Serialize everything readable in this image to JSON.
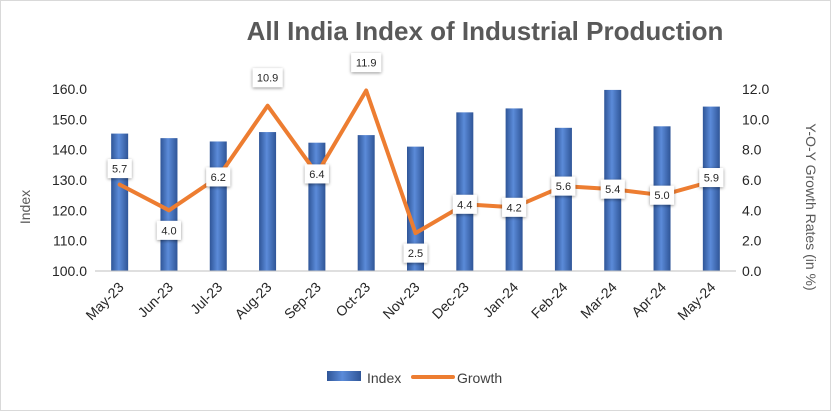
{
  "chart_data": {
    "type": "bar+line",
    "title": "All India Index of Industrial Production",
    "categories": [
      "May-23",
      "Jun-23",
      "Jul-23",
      "Aug-23",
      "Sep-23",
      "Oct-23",
      "Nov-23",
      "Dec-23",
      "Jan-24",
      "Feb-24",
      "Mar-24",
      "Apr-24",
      "May-24"
    ],
    "series": [
      {
        "name": "Index",
        "type": "bar",
        "axis": "left",
        "color": "#4472c4",
        "values": [
          145.3,
          143.8,
          142.7,
          145.8,
          142.3,
          144.8,
          141.0,
          152.3,
          153.6,
          147.2,
          159.7,
          147.7,
          154.2
        ]
      },
      {
        "name": "Growth",
        "type": "line",
        "axis": "right",
        "color": "#ed7d31",
        "values": [
          5.7,
          4.0,
          6.2,
          10.9,
          6.4,
          11.9,
          2.5,
          4.4,
          4.2,
          5.6,
          5.4,
          5.0,
          5.9
        ],
        "labels": [
          "5.7",
          "4.0",
          "6.2",
          "10.9",
          "6.4",
          "11.9",
          "2.5",
          "4.4",
          "4.2",
          "5.6",
          "5.4",
          "5.0",
          "5.9"
        ]
      }
    ],
    "ylabel": "Index",
    "y2label": "Y-O-Y Growth Rates (in %)",
    "ylim": [
      100,
      160
    ],
    "y2lim": [
      0,
      12
    ],
    "yticks": [
      "100.0",
      "110.0",
      "120.0",
      "130.0",
      "140.0",
      "150.0",
      "160.0"
    ],
    "y2ticks": [
      "0.0",
      "2.0",
      "4.0",
      "6.0",
      "8.0",
      "10.0",
      "12.0"
    ],
    "grid": false,
    "legend_position": "bottom"
  }
}
